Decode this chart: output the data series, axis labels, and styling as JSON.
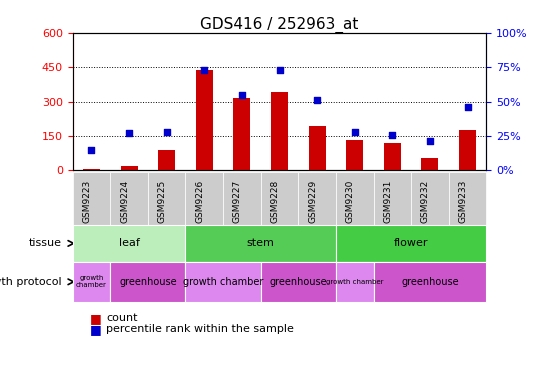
{
  "title": "GDS416 / 252963_at",
  "samples": [
    "GSM9223",
    "GSM9224",
    "GSM9225",
    "GSM9226",
    "GSM9227",
    "GSM9228",
    "GSM9229",
    "GSM9230",
    "GSM9231",
    "GSM9232",
    "GSM9233"
  ],
  "counts": [
    5,
    20,
    90,
    440,
    315,
    340,
    195,
    130,
    120,
    55,
    175
  ],
  "percentiles": [
    15,
    27,
    28,
    73,
    55,
    73,
    51,
    28,
    26,
    21,
    46
  ],
  "ylim_left": [
    0,
    600
  ],
  "ylim_right": [
    0,
    100
  ],
  "yticks_left": [
    0,
    150,
    300,
    450,
    600
  ],
  "yticks_right": [
    0,
    25,
    50,
    75,
    100
  ],
  "ytick_labels_right": [
    "0%",
    "25%",
    "50%",
    "75%",
    "100%"
  ],
  "bar_color": "#cc0000",
  "scatter_color": "#0000cc",
  "tissue_groups": [
    {
      "label": "leaf",
      "start": 0,
      "end": 3,
      "color": "#bbeebb"
    },
    {
      "label": "stem",
      "start": 3,
      "end": 7,
      "color": "#55cc55"
    },
    {
      "label": "flower",
      "start": 7,
      "end": 11,
      "color": "#44cc44"
    }
  ],
  "growth_groups": [
    {
      "label": "growth\nchamber",
      "start": 0,
      "end": 1,
      "color": "#dd88ee"
    },
    {
      "label": "greenhouse",
      "start": 1,
      "end": 3,
      "color": "#cc55cc"
    },
    {
      "label": "growth chamber",
      "start": 3,
      "end": 5,
      "color": "#dd88ee"
    },
    {
      "label": "greenhouse",
      "start": 5,
      "end": 7,
      "color": "#cc55cc"
    },
    {
      "label": "growth chamber",
      "start": 7,
      "end": 8,
      "color": "#dd88ee"
    },
    {
      "label": "greenhouse",
      "start": 8,
      "end": 11,
      "color": "#cc55cc"
    }
  ],
  "tissue_label": "tissue",
  "growth_label": "growth protocol",
  "legend_count_label": "count",
  "legend_percentile_label": "percentile rank within the sample",
  "sample_bg_color": "#cccccc",
  "plot_bg": "#ffffff"
}
